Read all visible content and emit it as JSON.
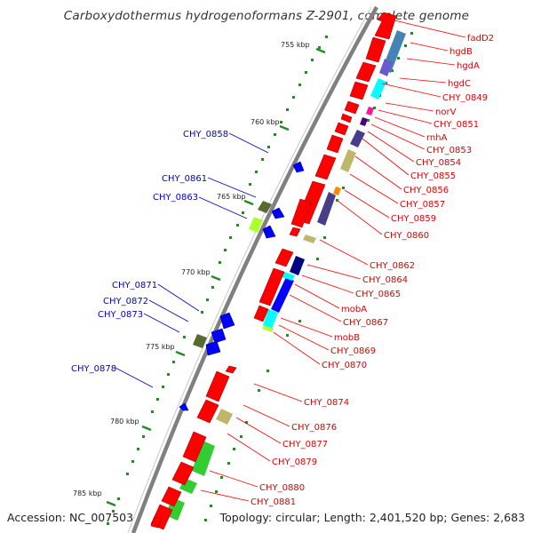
{
  "title": "Carboxydothermus hydrogenoformans Z-2901, complete genome",
  "footer": {
    "accession": "Accession: NC_007503",
    "summary": "Topology: circular; Length: 2,401,520 bp; Genes: 2,683"
  },
  "scale_labels": [
    "755 kbp",
    "760 kbp",
    "765 kbp",
    "770 kbp",
    "775 kbp",
    "780 kbp",
    "785 kbp"
  ],
  "colors": {
    "forward_label": "#e00000",
    "reverse_label": "#0000cc",
    "backbone": "#808080",
    "tick": "#228b22"
  },
  "forward_genes": [
    "fadD2",
    "hgdB",
    "hgdA",
    "hgdC",
    "CHY_0849",
    "norV",
    "CHY_0851",
    "rnhA",
    "CHY_0853",
    "CHY_0854",
    "CHY_0855",
    "CHY_0856",
    "CHY_0857",
    "CHY_0859",
    "CHY_0860",
    "CHY_0862",
    "CHY_0864",
    "CHY_0865",
    "mobA",
    "CHY_0867",
    "mobB",
    "CHY_0869",
    "CHY_0870",
    "CHY_0874",
    "CHY_0876",
    "CHY_0877",
    "CHY_0879",
    "CHY_0880",
    "CHY_0881"
  ],
  "reverse_genes": [
    "CHY_0858",
    "CHY_0861",
    "CHY_0863",
    "CHY_0871",
    "CHY_0872",
    "CHY_0873",
    "CHY_0878"
  ]
}
